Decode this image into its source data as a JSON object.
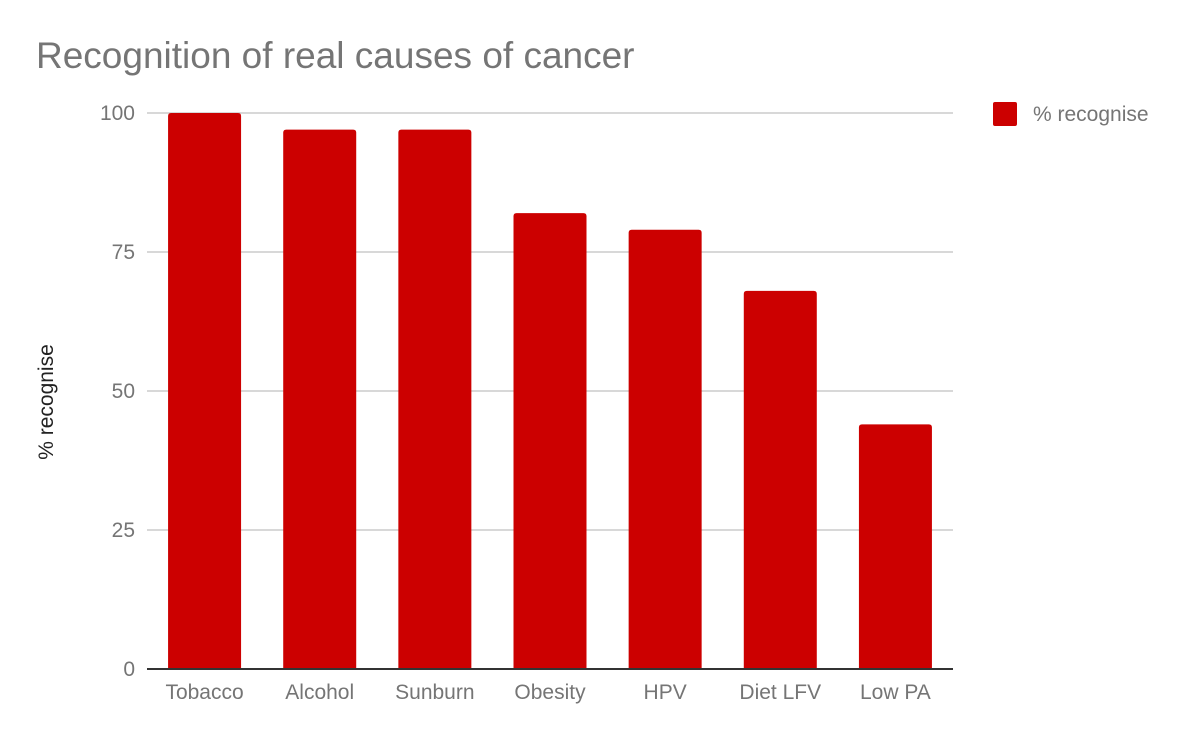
{
  "chart_data": {
    "type": "bar",
    "title": "Recognition of real causes of cancer",
    "xlabel": "",
    "ylabel": "% recognise",
    "categories": [
      "Tobacco",
      "Alcohol",
      "Sunburn",
      "Obesity",
      "HPV",
      "Diet LFV",
      "Low PA"
    ],
    "series": [
      {
        "name": "% recognise",
        "color": "#cc0000",
        "values": [
          100,
          97,
          97,
          82,
          79,
          68,
          44
        ]
      }
    ],
    "ylim": [
      0,
      100
    ],
    "yticks": [
      0,
      25,
      50,
      75,
      100
    ],
    "ytick_labels": [
      "0",
      "25",
      "50",
      "75",
      "100"
    ],
    "grid": true,
    "legend": {
      "position": "right",
      "entries": [
        "% recognise"
      ]
    }
  }
}
